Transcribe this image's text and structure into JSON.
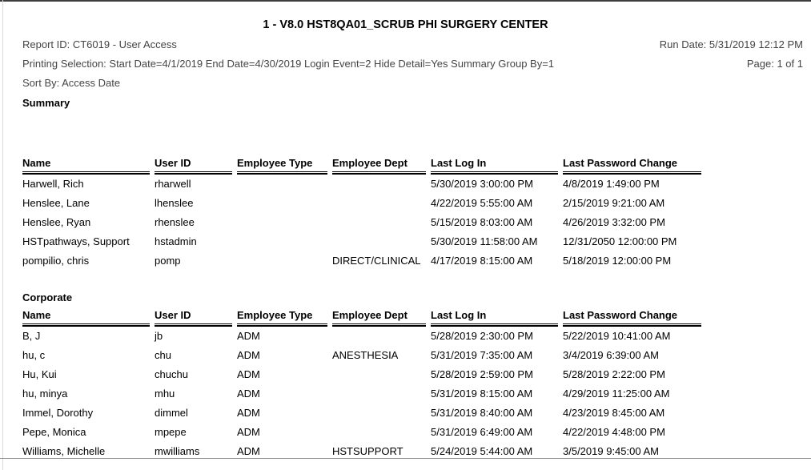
{
  "page": {
    "title": "1 - V8.0 HST8QA01_SCRUB PHI SURGERY CENTER",
    "report_id": "Report ID: CT6019 - User Access",
    "run_date": "Run Date: 5/31/2019 12:12 PM",
    "printing_selection": "Printing Selection: Start Date=4/1/2019 End Date=4/30/2019 Login Event=2 Hide Detail=Yes Summary Group By=1",
    "page_number": "Page: 1 of 1",
    "sort_by": "Sort By: Access Date"
  },
  "table": {
    "columns": [
      "Name",
      "User ID",
      "Employee Type",
      "Employee Dept",
      "Last Log In",
      "Last Password Change"
    ],
    "column_keys": [
      "name",
      "user_id",
      "employee_type",
      "employee_dept",
      "last_log_in",
      "last_password_change"
    ]
  },
  "sections": [
    {
      "label": "Summary",
      "rows": [
        {
          "name": "Harwell, Rich",
          "user_id": "rharwell",
          "employee_type": "",
          "employee_dept": "",
          "last_log_in": "5/30/2019 3:00:00 PM",
          "last_password_change": "4/8/2019 1:49:00 PM"
        },
        {
          "name": "Henslee, Lane",
          "user_id": "lhenslee",
          "employee_type": "",
          "employee_dept": "",
          "last_log_in": "4/22/2019 5:55:00 AM",
          "last_password_change": "2/15/2019 9:21:00 AM"
        },
        {
          "name": "Henslee, Ryan",
          "user_id": "rhenslee",
          "employee_type": "",
          "employee_dept": "",
          "last_log_in": "5/15/2019 8:03:00 AM",
          "last_password_change": "4/26/2019 3:32:00 PM"
        },
        {
          "name": "HSTpathways, Support",
          "user_id": "hstadmin",
          "employee_type": "",
          "employee_dept": "",
          "last_log_in": "5/30/2019 11:58:00 AM",
          "last_password_change": "12/31/2050 12:00:00 PM"
        },
        {
          "name": "pompilio, chris",
          "user_id": "pomp",
          "employee_type": "",
          "employee_dept": "DIRECT/CLINICAL",
          "last_log_in": "4/17/2019 8:15:00 AM",
          "last_password_change": "5/18/2019 12:00:00 PM"
        }
      ]
    },
    {
      "label": "Corporate",
      "rows": [
        {
          "name": "B, J",
          "user_id": "jb",
          "employee_type": "ADM",
          "employee_dept": "",
          "last_log_in": "5/28/2019 2:30:00 PM",
          "last_password_change": "5/22/2019 10:41:00 AM"
        },
        {
          "name": "hu, c",
          "user_id": "chu",
          "employee_type": "ADM",
          "employee_dept": "ANESTHESIA",
          "last_log_in": "5/31/2019 7:35:00 AM",
          "last_password_change": "3/4/2019 6:39:00 AM"
        },
        {
          "name": "Hu, Kui",
          "user_id": "chuchu",
          "employee_type": "ADM",
          "employee_dept": "",
          "last_log_in": "5/28/2019 2:59:00 PM",
          "last_password_change": "5/28/2019 2:22:00 PM"
        },
        {
          "name": "hu, minya",
          "user_id": "mhu",
          "employee_type": "ADM",
          "employee_dept": "",
          "last_log_in": "5/31/2019 8:15:00 AM",
          "last_password_change": "4/29/2019 11:25:00 AM"
        },
        {
          "name": "Immel, Dorothy",
          "user_id": "dimmel",
          "employee_type": "ADM",
          "employee_dept": "",
          "last_log_in": "5/31/2019 8:40:00 AM",
          "last_password_change": "4/23/2019 8:45:00 AM"
        },
        {
          "name": "Pepe, Monica",
          "user_id": "mpepe",
          "employee_type": "ADM",
          "employee_dept": "",
          "last_log_in": "5/31/2019 6:49:00 AM",
          "last_password_change": "4/22/2019 4:48:00 PM"
        },
        {
          "name": "Williams, Michelle",
          "user_id": "mwilliams",
          "employee_type": "ADM",
          "employee_dept": "HSTSUPPORT",
          "last_log_in": "5/24/2019 5:44:00 AM",
          "last_password_change": "3/5/2019 9:45:00 AM"
        }
      ]
    }
  ],
  "colors": {
    "meta_text": "#454545",
    "body_text": "#000000",
    "frame_top": "#3d3d3d",
    "frame_left": "#d9d9d9",
    "frame_bottom": "#8f8f8f"
  }
}
